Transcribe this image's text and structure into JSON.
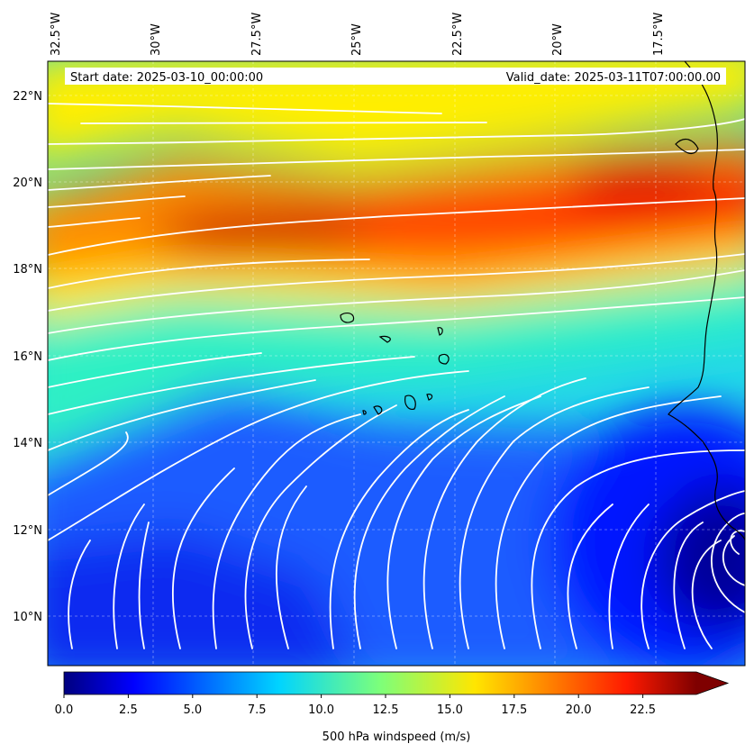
{
  "map": {
    "start_date_text": "Start date: 2025-03-10_00:00:00",
    "valid_date_text": "Valid_date: 2025-03-11T07:00:00.00",
    "longitude_labels": [
      "32.5°W",
      "30°W",
      "27.5°W",
      "25°W",
      "22.5°W",
      "20°W",
      "17.5°W"
    ],
    "latitude_labels": [
      "22°N",
      "20°N",
      "18°N",
      "16°N",
      "14°N",
      "12°N",
      "10°N"
    ],
    "colorbar": {
      "label": "500 hPa windspeed (m/s)",
      "ticks": [
        "0.0",
        "2.5",
        "5.0",
        "7.5",
        "10.0",
        "12.5",
        "15.0",
        "17.5",
        "20.0",
        "22.5"
      ],
      "min": 0,
      "max": 25,
      "colormap": "jet",
      "extend": "max"
    },
    "colors": {
      "streamline": "#ffffff",
      "coastline": "#000000",
      "grid": "#ffffff"
    }
  }
}
